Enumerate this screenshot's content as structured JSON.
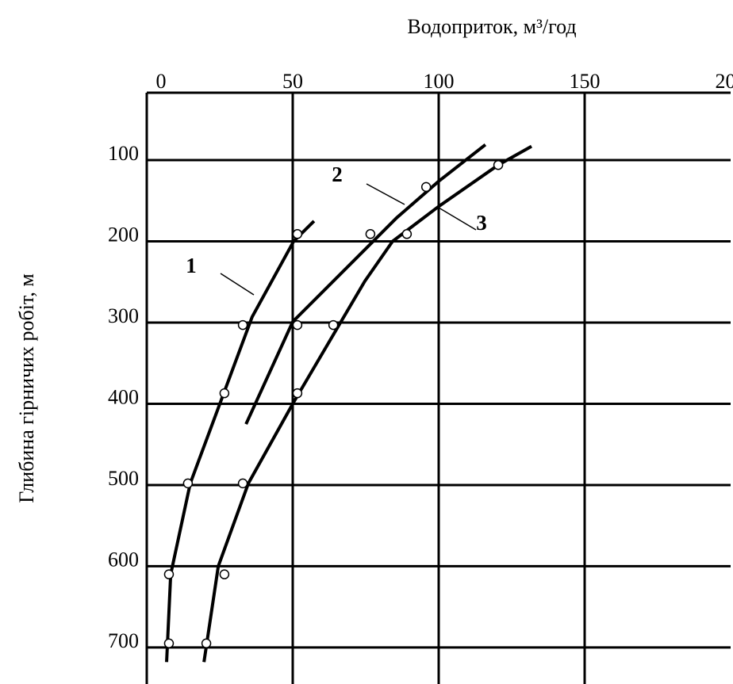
{
  "chart_data": {
    "type": "line",
    "xlabel": "Водоприток, м³/год",
    "ylabel": "Глибина гірничих робіт, м",
    "xlim": [
      0,
      200
    ],
    "xticks": [
      0,
      50,
      100,
      150,
      200
    ],
    "ylim": [
      17,
      745
    ],
    "yticks": [
      100,
      200,
      300,
      400,
      500,
      600,
      700
    ],
    "y_inverted": true,
    "grid": true,
    "color": "#000000",
    "series": [
      {
        "name": "1",
        "curve_x": [
          57.3,
          50.3,
          36.1,
          14.9,
          8.2,
          6.8
        ],
        "curve_y": [
          175,
          200,
          293,
          498,
          610,
          718
        ],
        "x": [
          51.6,
          32.9,
          26.6,
          14.1,
          7.6,
          7.6
        ],
        "y": [
          191,
          303,
          387,
          498,
          610,
          695
        ]
      },
      {
        "name": "2",
        "curve_x": [
          116,
          100,
          85.6,
          50,
          34
        ],
        "curve_y": [
          81,
          126,
          171,
          299,
          425
        ],
        "x": [
          95.7,
          76.6,
          51.6
        ],
        "y": [
          133,
          191,
          303
        ]
      },
      {
        "name": "3",
        "curve_x": [
          131.8,
          120.4,
          100,
          84.2,
          74.7,
          50,
          34.8,
          24.5,
          19.6
        ],
        "curve_y": [
          83,
          106,
          157,
          200,
          249,
          400,
          498,
          600,
          718
        ],
        "x": [
          120.4,
          89.1,
          63.9,
          51.6,
          32.9,
          26.6,
          20.4
        ],
        "y": [
          106,
          191,
          303,
          387,
          498,
          610,
          695
        ]
      }
    ]
  }
}
